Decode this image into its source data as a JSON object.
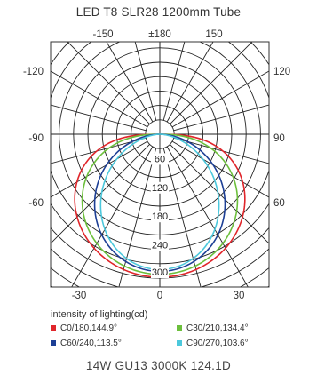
{
  "chart_data": {
    "type": "polar",
    "title": "LED T8 SLR28 1200mm Tube",
    "top_angle_labels": [
      "-150",
      "±180",
      "150"
    ],
    "left_angle_labels": [
      "-120",
      "-90",
      "-60"
    ],
    "right_angle_labels": [
      "120",
      "90",
      "60"
    ],
    "bottom_angle_labels": [
      "-30",
      "0",
      "30"
    ],
    "radial_tick_labels": [
      "60",
      "120",
      "180",
      "240",
      "300"
    ],
    "radial_ticks": [
      60,
      120,
      180,
      240,
      300
    ],
    "r_max": 300,
    "unit_label": "intensity of lighting(cd)",
    "series": [
      {
        "name": "C0/180,144.9°",
        "color": "#e0262b",
        "beam_angle_deg": 144.9,
        "peak_cd": 298
      },
      {
        "name": "C30/210,134.4°",
        "color": "#6cbf3c",
        "beam_angle_deg": 134.4,
        "peak_cd": 292
      },
      {
        "name": "C60/240,113.5°",
        "color": "#1d3f95",
        "beam_angle_deg": 113.5,
        "peak_cd": 286
      },
      {
        "name": "C90/270,103.6°",
        "color": "#4cc8dc",
        "beam_angle_deg": 103.6,
        "peak_cd": 282
      }
    ],
    "footer": "14W GU13 3000K 124.1D"
  }
}
